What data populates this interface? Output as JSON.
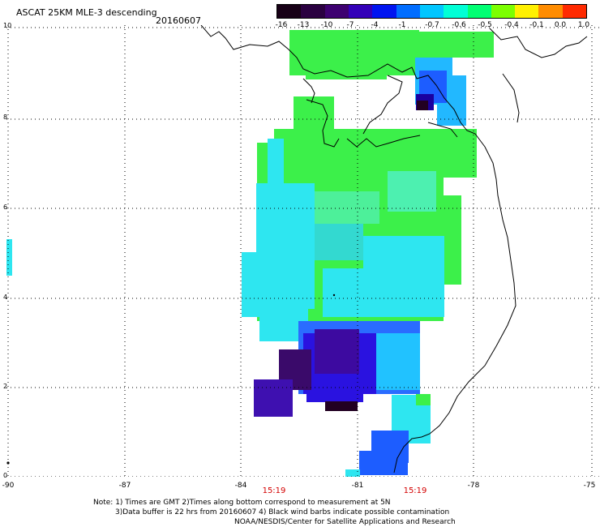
{
  "header": {
    "title": "ASCAT 25KM MLE-3 descending",
    "date": "20160607"
  },
  "colorbar": {
    "labels": [
      "-16",
      "-13",
      "-10",
      "-7",
      "-4",
      "-1",
      "-0.7",
      "-0.6",
      "-0.5",
      "-0.4",
      "-0.1",
      "0.0",
      "1.0"
    ],
    "colors": [
      "#170016",
      "#2a0040",
      "#3d0070",
      "#3300b8",
      "#0014f0",
      "#006dff",
      "#00c6ff",
      "#00ffd6",
      "#00ff73",
      "#7cff00",
      "#fff000",
      "#ff8c00",
      "#ff2a00"
    ]
  },
  "axes": {
    "y_ticks": [
      "10",
      "8",
      "6",
      "4",
      "2",
      "0"
    ],
    "x_ticks": [
      "-90",
      "-87",
      "-84",
      "-81",
      "-78",
      "-75"
    ]
  },
  "time_labels": [
    "15:19",
    "15:19"
  ],
  "notes": {
    "line1": "Note: 1) Times are GMT 2)Times along bottom correspond to measurement at 5N",
    "line2": "3)Data buffer is 22 hrs from 20160607 4) Black wind barbs indicate possible contamination",
    "line3": "NOAA/NESDIS/Center for Satellite Applications and Research"
  }
}
